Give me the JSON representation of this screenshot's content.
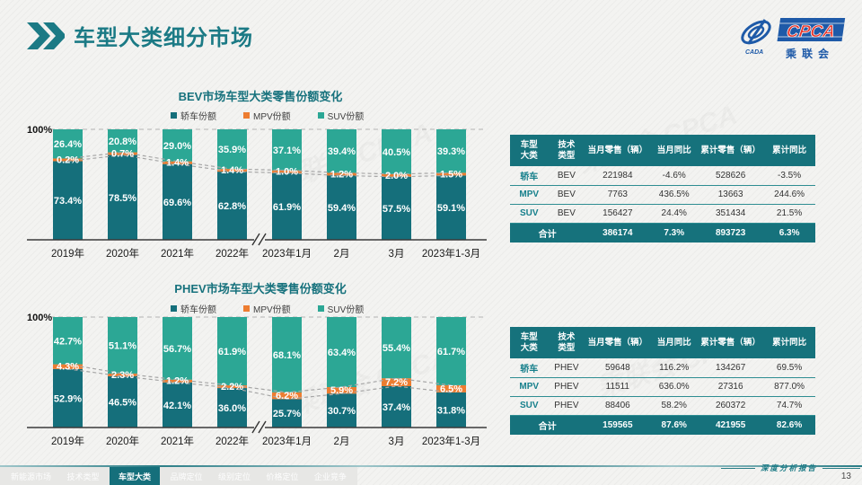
{
  "header": {
    "title": "车型大类细分市场"
  },
  "logo": {
    "abbr": "CPCA",
    "cn": "乘联会",
    "emblem_text": "CADA"
  },
  "chart_data": [
    {
      "type": "bar",
      "stacked_percent": true,
      "title": "BEV市场车型大类零售份额变化",
      "categories": [
        "2019年",
        "2020年",
        "2021年",
        "2022年",
        "2023年1月",
        "2月",
        "3月",
        "2023年1-3月"
      ],
      "series": [
        {
          "name": "轿车份额",
          "color": "#156f7b",
          "values": [
            73.4,
            78.5,
            69.6,
            62.8,
            61.9,
            59.4,
            57.5,
            59.1
          ]
        },
        {
          "name": "MPV份额",
          "color": "#ed7d31",
          "values": [
            0.2,
            0.7,
            1.4,
            1.4,
            1.0,
            1.2,
            2.0,
            1.5
          ]
        },
        {
          "name": "SUV份额",
          "color": "#2ca795",
          "values": [
            26.4,
            20.8,
            29.0,
            35.9,
            37.1,
            39.4,
            40.5,
            39.3
          ]
        }
      ],
      "ylim": [
        0,
        100
      ],
      "y_top_label": "100%",
      "axis_break_after": "2022年",
      "legend_position": "top",
      "grid": "top-dashed-only",
      "trend_lines": "dashed gray lines tracing sedan/MPV stack boundaries"
    },
    {
      "type": "bar",
      "stacked_percent": true,
      "title": "PHEV市场车型大类零售份额变化",
      "categories": [
        "2019年",
        "2020年",
        "2021年",
        "2022年",
        "2023年1月",
        "2月",
        "3月",
        "2023年1-3月"
      ],
      "series": [
        {
          "name": "轿车份额",
          "color": "#156f7b",
          "values": [
            52.9,
            46.5,
            42.1,
            36.0,
            25.7,
            30.7,
            37.4,
            31.8
          ]
        },
        {
          "name": "MPV份额",
          "color": "#ed7d31",
          "values": [
            4.3,
            2.3,
            1.2,
            2.2,
            6.2,
            5.9,
            7.2,
            6.5
          ]
        },
        {
          "name": "SUV份额",
          "color": "#2ca795",
          "values": [
            42.7,
            51.1,
            56.7,
            61.9,
            68.1,
            63.4,
            55.4,
            61.7
          ]
        }
      ],
      "ylim": [
        0,
        100
      ],
      "y_top_label": "100%",
      "axis_break_after": "2022年",
      "legend_position": "top",
      "grid": "top-dashed-only",
      "trend_lines": "dashed gray lines tracing sedan/MPV stack boundaries"
    }
  ],
  "bev_table": {
    "headers": [
      "车型\n大类",
      "技术\n类型",
      "当月零售（辆）",
      "当月同比",
      "累计零售（辆）",
      "累计同比"
    ],
    "rows": [
      {
        "cat": "轿车",
        "tech": "BEV",
        "monthly": "221984",
        "monthly_yoy": "-4.6%",
        "cumulative": "528626",
        "cumulative_yoy": "-3.5%"
      },
      {
        "cat": "MPV",
        "tech": "BEV",
        "monthly": "7763",
        "monthly_yoy": "436.5%",
        "cumulative": "13663",
        "cumulative_yoy": "244.6%"
      },
      {
        "cat": "SUV",
        "tech": "BEV",
        "monthly": "156427",
        "monthly_yoy": "24.4%",
        "cumulative": "351434",
        "cumulative_yoy": "21.5%"
      }
    ],
    "total": {
      "label": "合计",
      "monthly": "386174",
      "monthly_yoy": "7.3%",
      "cumulative": "893723",
      "cumulative_yoy": "6.3%"
    }
  },
  "phev_table": {
    "headers": [
      "车型\n大类",
      "技术\n类型",
      "当月零售（辆）",
      "当月同比",
      "累计零售（辆）",
      "累计同比"
    ],
    "rows": [
      {
        "cat": "轿车",
        "tech": "PHEV",
        "monthly": "59648",
        "monthly_yoy": "116.2%",
        "cumulative": "134267",
        "cumulative_yoy": "69.5%"
      },
      {
        "cat": "MPV",
        "tech": "PHEV",
        "monthly": "11511",
        "monthly_yoy": "636.0%",
        "cumulative": "27316",
        "cumulative_yoy": "877.0%"
      },
      {
        "cat": "SUV",
        "tech": "PHEV",
        "monthly": "88406",
        "monthly_yoy": "58.2%",
        "cumulative": "260372",
        "cumulative_yoy": "74.7%"
      }
    ],
    "total": {
      "label": "合计",
      "monthly": "159565",
      "monthly_yoy": "87.6%",
      "cumulative": "421955",
      "cumulative_yoy": "82.6%"
    }
  },
  "nav": {
    "tabs": [
      {
        "label": "新能源市场",
        "active": false
      },
      {
        "label": "技术类型",
        "active": false
      },
      {
        "label": "车型大类",
        "active": true
      },
      {
        "label": "品牌定位",
        "active": false
      },
      {
        "label": "级别定位",
        "active": false
      },
      {
        "label": "价格定位",
        "active": false
      },
      {
        "label": "企业竞争",
        "active": false
      }
    ]
  },
  "footer": {
    "report_label": "深度分析报告",
    "page_number": "13"
  },
  "colors": {
    "accent_teal": "#17727d",
    "sedan": "#156f7b",
    "mpv": "#ed7d31",
    "suv": "#2ca795",
    "table_header": "#16727c",
    "dashed_trend": "#a6a6a6"
  }
}
